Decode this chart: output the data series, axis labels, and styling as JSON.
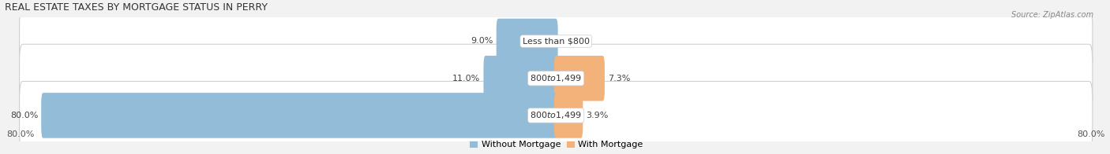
{
  "title": "Real Estate Taxes by Mortgage Status in Perry",
  "source": "Source: ZipAtlas.com",
  "rows": [
    {
      "without_mortgage_pct": 9.0,
      "with_mortgage_pct": 0.0,
      "label": "Less than $800"
    },
    {
      "without_mortgage_pct": 11.0,
      "with_mortgage_pct": 7.3,
      "label": "$800 to $1,499"
    },
    {
      "without_mortgage_pct": 80.0,
      "with_mortgage_pct": 3.9,
      "label": "$800 to $1,499"
    }
  ],
  "max_val": 80.0,
  "color_without": "#92bcd8",
  "color_with": "#f2b27a",
  "bar_height": 0.62,
  "bg_color": "#f2f2f2",
  "row_bg": "white",
  "legend_labels": [
    "Without Mortgage",
    "With Mortgage"
  ],
  "x_left_label": "80.0%",
  "x_right_label": "80.0%",
  "title_fontsize": 9,
  "label_fontsize": 8,
  "tick_fontsize": 8,
  "source_fontsize": 7
}
